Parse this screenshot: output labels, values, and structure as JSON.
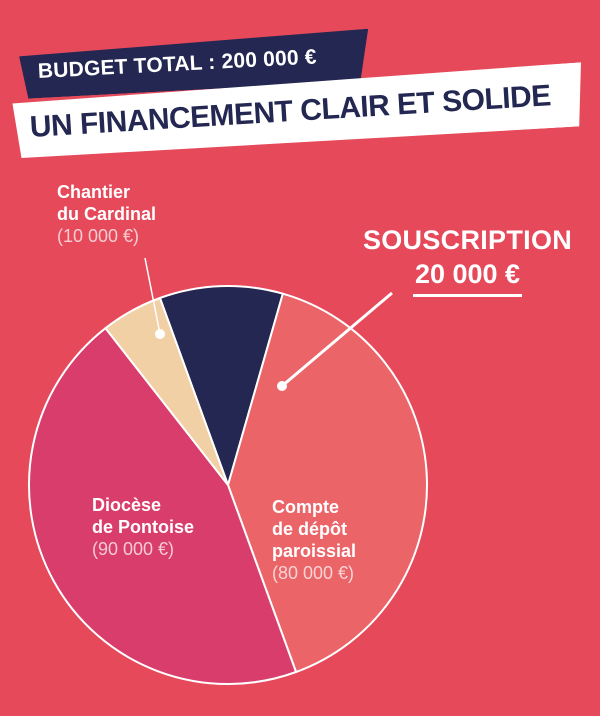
{
  "header": {
    "budget_label": "BUDGET TOTAL : 200 000 €",
    "title": "UN FINANCEMENT CLAIR ET SOLIDE"
  },
  "colors": {
    "background": "#e5495a",
    "navy": "#232751",
    "salmon": "#ea6468",
    "pink": "#d93d6c",
    "beige": "#f2d0a5"
  },
  "chart_data": {
    "type": "pie",
    "total": 200000,
    "slices": [
      {
        "name": "SOUSCRIPTION",
        "value": 20000,
        "value_label": "20 000 €",
        "color": "#232751"
      },
      {
        "name": "Compte de dépôt paroissial",
        "value": 80000,
        "value_label": "(80 000 €)",
        "color": "#ea6468"
      },
      {
        "name": "Diocèse de Pontoise",
        "value": 90000,
        "value_label": "(90 000 €)",
        "color": "#d93d6c"
      },
      {
        "name": "Chantier du Cardinal",
        "value": 10000,
        "value_label": "(10 000 €)",
        "color": "#f2d0a5"
      }
    ],
    "labels": {
      "souscription": {
        "name": "SOUSCRIPTION",
        "value": "20 000 €"
      },
      "compte": {
        "lines": [
          "Compte",
          "de dépôt",
          "paroissial"
        ],
        "value": "(80 000 €)"
      },
      "diocese": {
        "lines": [
          "Diocèse",
          "de Pontoise"
        ],
        "value": "(90 000 €)"
      },
      "chantier": {
        "lines": [
          "Chantier",
          "du Cardinal"
        ],
        "value": "(10 000 €)"
      }
    }
  }
}
